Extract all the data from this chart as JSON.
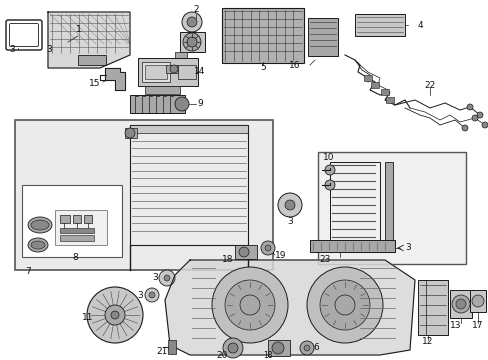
{
  "bg_color": "#ffffff",
  "figure_width": 4.89,
  "figure_height": 3.6,
  "dpi": 100,
  "lc": "#1a1a1a",
  "gray1": "#c8c8c8",
  "gray2": "#a8a8a8",
  "gray3": "#888888",
  "gray4": "#d8d8d8",
  "box7_fill": "#ebebeb",
  "box10_fill": "#f0f0f0"
}
